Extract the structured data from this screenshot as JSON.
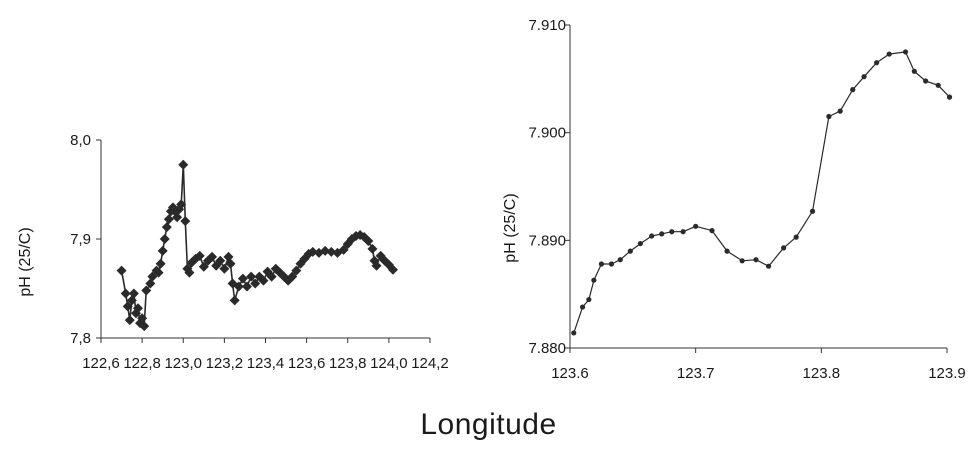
{
  "shared_xlabel": "Longitude",
  "chart_data": [
    {
      "type": "line",
      "title": "",
      "xlabel": "",
      "ylabel": "pH (25/C)",
      "xlim": [
        122.6,
        124.2
      ],
      "ylim": [
        7.8,
        8.0
      ],
      "x_ticks": [
        122.6,
        122.8,
        123.0,
        123.2,
        123.4,
        123.6,
        123.8,
        124.0,
        124.2
      ],
      "x_tick_labels": [
        "122,6",
        "122,8",
        "123,0",
        "123,2",
        "123,4",
        "123,6",
        "123,8",
        "124,0",
        "124,2"
      ],
      "y_ticks": [
        7.8,
        7.9,
        8.0
      ],
      "y_tick_labels": [
        "7,8",
        "7,9",
        "8,0"
      ],
      "marker": "diamond",
      "grid": false,
      "series": [
        {
          "color": "#2a2a2a",
          "points": [
            [
              122.7,
              7.868
            ],
            [
              122.72,
              7.845
            ],
            [
              122.73,
              7.832
            ],
            [
              122.74,
              7.818
            ],
            [
              122.75,
              7.838
            ],
            [
              122.76,
              7.845
            ],
            [
              122.77,
              7.825
            ],
            [
              122.78,
              7.83
            ],
            [
              122.79,
              7.815
            ],
            [
              122.8,
              7.82
            ],
            [
              122.81,
              7.812
            ],
            [
              122.82,
              7.848
            ],
            [
              122.84,
              7.855
            ],
            [
              122.85,
              7.862
            ],
            [
              122.87,
              7.868
            ],
            [
              122.88,
              7.866
            ],
            [
              122.89,
              7.875
            ],
            [
              122.9,
              7.888
            ],
            [
              122.91,
              7.9
            ],
            [
              122.92,
              7.912
            ],
            [
              122.93,
              7.92
            ],
            [
              122.94,
              7.928
            ],
            [
              122.95,
              7.932
            ],
            [
              122.96,
              7.928
            ],
            [
              122.97,
              7.922
            ],
            [
              122.98,
              7.93
            ],
            [
              122.99,
              7.935
            ],
            [
              123.0,
              7.975
            ],
            [
              123.01,
              7.918
            ],
            [
              123.02,
              7.87
            ],
            [
              123.03,
              7.866
            ],
            [
              123.04,
              7.876
            ],
            [
              123.06,
              7.88
            ],
            [
              123.08,
              7.883
            ],
            [
              123.1,
              7.872
            ],
            [
              123.12,
              7.878
            ],
            [
              123.14,
              7.882
            ],
            [
              123.16,
              7.873
            ],
            [
              123.18,
              7.878
            ],
            [
              123.2,
              7.87
            ],
            [
              123.22,
              7.882
            ],
            [
              123.23,
              7.875
            ],
            [
              123.24,
              7.855
            ],
            [
              123.25,
              7.838
            ],
            [
              123.27,
              7.852
            ],
            [
              123.29,
              7.86
            ],
            [
              123.31,
              7.852
            ],
            [
              123.33,
              7.862
            ],
            [
              123.35,
              7.855
            ],
            [
              123.37,
              7.862
            ],
            [
              123.39,
              7.858
            ],
            [
              123.41,
              7.867
            ],
            [
              123.43,
              7.862
            ],
            [
              123.45,
              7.87
            ],
            [
              123.47,
              7.866
            ],
            [
              123.49,
              7.862
            ],
            [
              123.51,
              7.858
            ],
            [
              123.53,
              7.862
            ],
            [
              123.55,
              7.868
            ],
            [
              123.57,
              7.875
            ],
            [
              123.59,
              7.88
            ],
            [
              123.61,
              7.885
            ],
            [
              123.63,
              7.887
            ],
            [
              123.66,
              7.886
            ],
            [
              123.69,
              7.888
            ],
            [
              123.72,
              7.887
            ],
            [
              123.75,
              7.886
            ],
            [
              123.78,
              7.889
            ],
            [
              123.8,
              7.895
            ],
            [
              123.82,
              7.9
            ],
            [
              123.84,
              7.903
            ],
            [
              123.86,
              7.904
            ],
            [
              123.88,
              7.902
            ],
            [
              123.9,
              7.898
            ],
            [
              123.92,
              7.89
            ],
            [
              123.93,
              7.878
            ],
            [
              123.94,
              7.873
            ],
            [
              123.96,
              7.883
            ],
            [
              123.98,
              7.878
            ],
            [
              124.0,
              7.874
            ],
            [
              124.02,
              7.869
            ]
          ]
        }
      ]
    },
    {
      "type": "line",
      "title": "",
      "xlabel": "",
      "ylabel": "pH (25/C)",
      "xlim": [
        123.6,
        123.9
      ],
      "ylim": [
        7.88,
        7.91
      ],
      "x_ticks": [
        123.6,
        123.7,
        123.8,
        123.9
      ],
      "x_tick_labels": [
        "123.6",
        "123.7",
        "123.8",
        "123.9"
      ],
      "y_ticks": [
        7.88,
        7.89,
        7.9,
        7.91
      ],
      "y_tick_labels": [
        "7.880",
        "7.890",
        "7.900",
        "7.910"
      ],
      "marker": "dot",
      "grid": false,
      "series": [
        {
          "color": "#2a2a2a",
          "points": [
            [
              123.603,
              7.8814
            ],
            [
              123.61,
              7.8838
            ],
            [
              123.615,
              7.8845
            ],
            [
              123.619,
              7.8863
            ],
            [
              123.625,
              7.8878
            ],
            [
              123.633,
              7.8878
            ],
            [
              123.64,
              7.8882
            ],
            [
              123.648,
              7.889
            ],
            [
              123.656,
              7.8897
            ],
            [
              123.665,
              7.8904
            ],
            [
              123.673,
              7.8906
            ],
            [
              123.681,
              7.8908
            ],
            [
              123.69,
              7.8908
            ],
            [
              123.7,
              7.8913
            ],
            [
              123.713,
              7.8909
            ],
            [
              123.725,
              7.889
            ],
            [
              123.737,
              7.8881
            ],
            [
              123.748,
              7.8882
            ],
            [
              123.758,
              7.8876
            ],
            [
              123.77,
              7.8893
            ],
            [
              123.78,
              7.8903
            ],
            [
              123.793,
              7.8927
            ],
            [
              123.806,
              7.9015
            ],
            [
              123.815,
              7.902
            ],
            [
              123.825,
              7.904
            ],
            [
              123.834,
              7.9052
            ],
            [
              123.844,
              7.9065
            ],
            [
              123.854,
              7.9073
            ],
            [
              123.867,
              7.9075
            ],
            [
              123.874,
              7.9057
            ],
            [
              123.883,
              7.9048
            ],
            [
              123.893,
              7.9044
            ],
            [
              123.902,
              7.9033
            ]
          ]
        }
      ]
    }
  ]
}
